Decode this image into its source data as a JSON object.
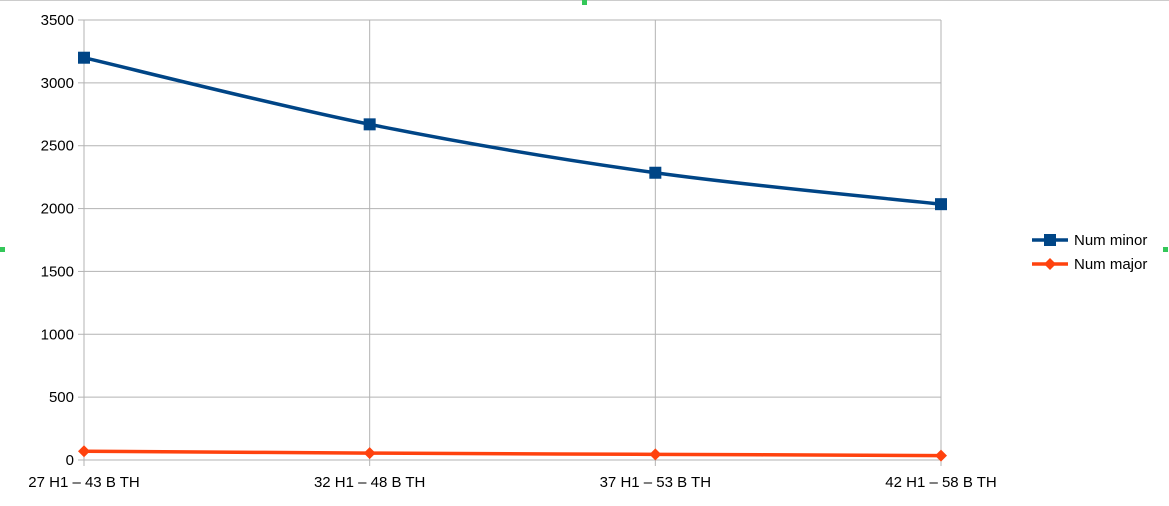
{
  "chart_data": {
    "type": "line",
    "categories": [
      "27 H1 – 43 B TH",
      "32 H1 – 48 B TH",
      "37 H1 – 53 B TH",
      "42 H1 – 58 B TH"
    ],
    "series": [
      {
        "name": "Num minor",
        "values": [
          3200,
          2670,
          2285,
          2035
        ],
        "color": "#004586",
        "marker": "square"
      },
      {
        "name": "Num major",
        "values": [
          70,
          55,
          45,
          35
        ],
        "color": "#ff420e",
        "marker": "diamond"
      }
    ],
    "ylim": [
      0,
      3500
    ],
    "yticks": [
      0,
      500,
      1000,
      1500,
      2000,
      2500,
      3000,
      3500
    ],
    "grid": true,
    "legend": "right",
    "smooth": true
  }
}
